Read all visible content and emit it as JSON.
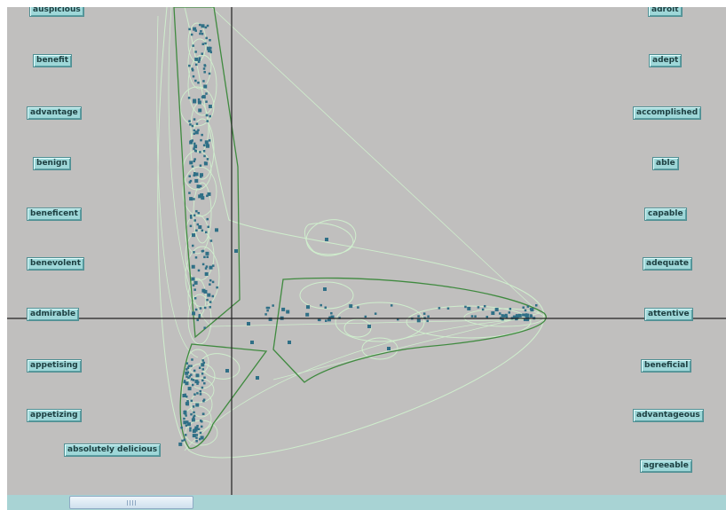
{
  "left_words": [
    "auspicious",
    "benefit",
    "advantage",
    "benign",
    "beneficent",
    "benevolent",
    "admirable",
    "appetising",
    "appetizing",
    "absolutely delicious"
  ],
  "right_words": [
    "adroit",
    "adept",
    "accomplished",
    "able",
    "capable",
    "adequate",
    "attentive",
    "beneficial",
    "advantageous",
    "agreeable"
  ],
  "colors": {
    "background": "#c0bfbe",
    "axis": "#222222",
    "button_fill": "#9ed7d8",
    "button_text": "#1c3e40",
    "hull_dark": "#3f8a3f",
    "hull_light": "#cfeecd",
    "point": "#2f6f86",
    "scrollbar": "#a8d3d4"
  }
}
